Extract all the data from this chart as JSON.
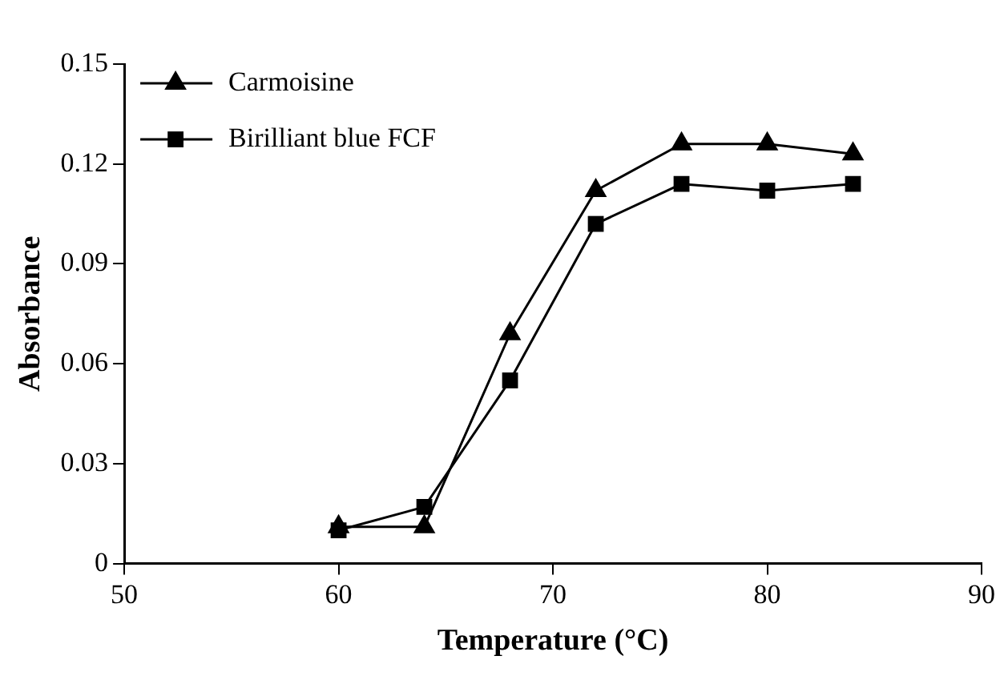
{
  "chart_data": {
    "type": "line",
    "xlabel": "Temperature (°C)",
    "ylabel": "Absorbance",
    "x": [
      60,
      64,
      68,
      72,
      76,
      80,
      84
    ],
    "series": [
      {
        "name": "Carmoisine",
        "color": "#000000",
        "marker": "triangle",
        "values": [
          0.011,
          0.011,
          0.069,
          0.112,
          0.126,
          0.126,
          0.123
        ]
      },
      {
        "name": "Birilliant blue FCF",
        "color": "#000000",
        "marker": "square",
        "values": [
          0.01,
          0.017,
          0.055,
          0.102,
          0.114,
          0.112,
          0.114
        ]
      }
    ],
    "xlim": [
      50,
      90
    ],
    "xticks": [
      50,
      60,
      70,
      80,
      90
    ],
    "ylim": [
      0,
      0.15
    ],
    "yticks": [
      0,
      0.03,
      0.06,
      0.09,
      0.12,
      0.15
    ],
    "grid": false,
    "legend": "top left",
    "line_style": "solid"
  }
}
